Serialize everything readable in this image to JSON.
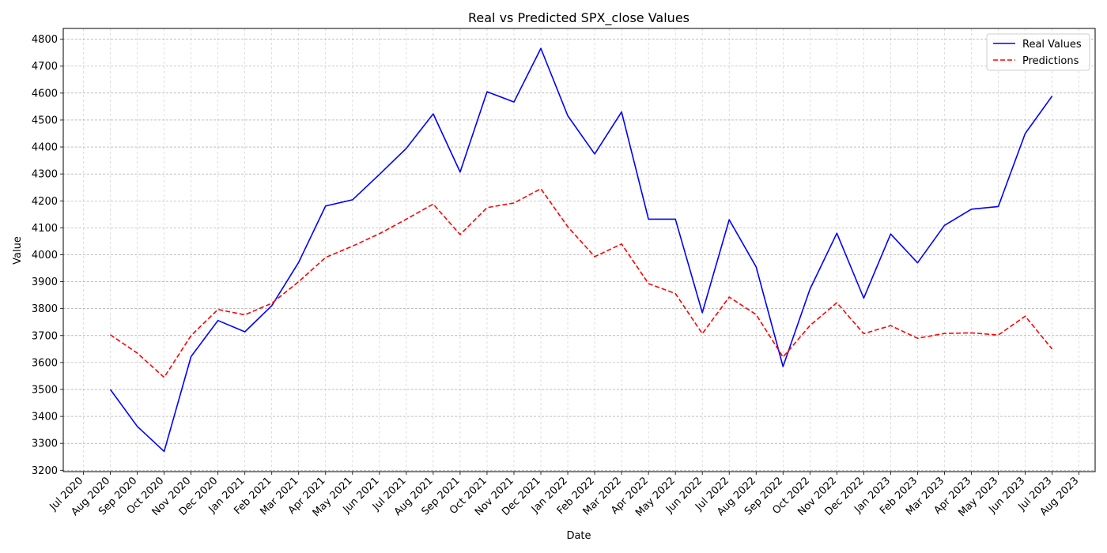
{
  "chart_data": {
    "type": "line",
    "title": "Real vs Predicted SPX_close Values",
    "xlabel": "Date",
    "ylabel": "Value",
    "x_ticks": [
      "Jul 2020",
      "Aug 2020",
      "Sep 2020",
      "Oct 2020",
      "Nov 2020",
      "Dec 2020",
      "Jan 2021",
      "Feb 2021",
      "Mar 2021",
      "Apr 2021",
      "May 2021",
      "Jun 2021",
      "Jul 2021",
      "Aug 2021",
      "Sep 2021",
      "Oct 2021",
      "Nov 2021",
      "Dec 2021",
      "Jan 2022",
      "Feb 2022",
      "Mar 2022",
      "Apr 2022",
      "May 2022",
      "Jun 2022",
      "Jul 2022",
      "Aug 2022",
      "Sep 2022",
      "Oct 2022",
      "Nov 2022",
      "Dec 2022",
      "Jan 2023",
      "Feb 2023",
      "Mar 2023",
      "Apr 2023",
      "May 2023",
      "Jun 2023",
      "Jul 2023",
      "Aug 2023"
    ],
    "y_ticks": [
      3200,
      3300,
      3400,
      3500,
      3600,
      3700,
      3800,
      3900,
      4000,
      4100,
      4200,
      4300,
      4400,
      4500,
      4600,
      4700,
      4800
    ],
    "ylim": [
      3195,
      4840
    ],
    "x_dates": [
      "Aug 2020",
      "Sep 2020",
      "Oct 2020",
      "Nov 2020",
      "Dec 2020",
      "Jan 2021",
      "Feb 2021",
      "Mar 2021",
      "Apr 2021",
      "May 2021",
      "Jun 2021",
      "Jul 2021",
      "Aug 2021",
      "Sep 2021",
      "Oct 2021",
      "Nov 2021",
      "Dec 2021",
      "Jan 2022",
      "Feb 2022",
      "Mar 2022",
      "Apr 2022",
      "May 2022",
      "Jun 2022",
      "Jul 2022",
      "Aug 2022",
      "Sep 2022",
      "Oct 2022",
      "Nov 2022",
      "Dec 2022",
      "Jan 2023",
      "Feb 2023",
      "Mar 2023",
      "Apr 2023",
      "May 2023",
      "Jun 2023",
      "Jul 2023"
    ],
    "series": [
      {
        "name": "Real Values",
        "color": "#0000ff",
        "style": "solid",
        "values": [
          3500,
          3363,
          3270,
          3622,
          3756,
          3714,
          3811,
          3972,
          4181,
          4204,
          4298,
          4395,
          4523,
          4307,
          4605,
          4567,
          4766,
          4516,
          4374,
          4530,
          4132,
          4132,
          3785,
          4130,
          3955,
          3585,
          3872,
          4080,
          3839,
          4077,
          3970,
          4109,
          4169,
          4179,
          4450,
          4589
        ]
      },
      {
        "name": "Predictions",
        "color": "#ff0000",
        "style": "dashed",
        "values": [
          3703,
          3635,
          3545,
          3700,
          3797,
          3777,
          3820,
          3900,
          3990,
          4032,
          4078,
          4132,
          4188,
          4075,
          4175,
          4192,
          4245,
          4104,
          3993,
          4040,
          3893,
          3856,
          3707,
          3843,
          3778,
          3620,
          3737,
          3822,
          3707,
          3737,
          3690,
          3708,
          3710,
          3702,
          3772,
          3650
        ]
      }
    ],
    "grid": true,
    "legend_position": "top-right"
  }
}
